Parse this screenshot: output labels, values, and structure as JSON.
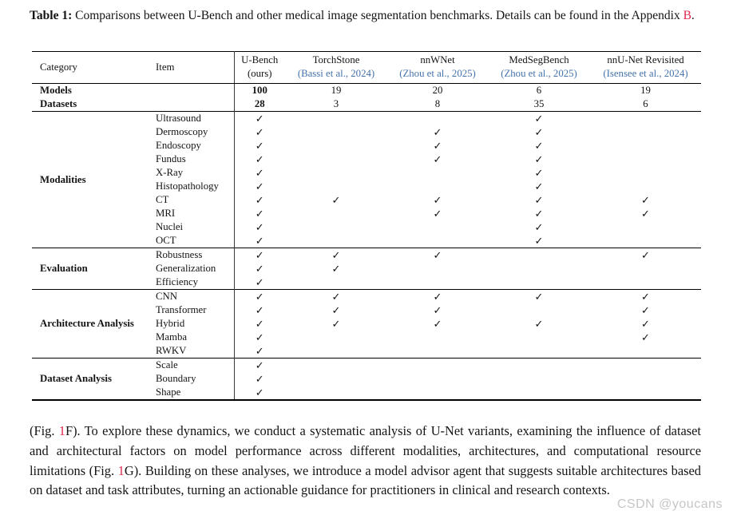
{
  "caption_segments": [
    {
      "t": "Table 1:",
      "b": true,
      "n": "caption-label"
    },
    {
      "t": " Comparisons between U-Bench and other medical image segmentation benchmarks. Details can be found in the Appendix ",
      "n": "caption-text"
    },
    {
      "t": "B",
      "c": "link",
      "n": "appendix-link"
    },
    {
      "t": ".",
      "n": "caption-text"
    }
  ],
  "table": {
    "category_header": "Category",
    "item_header": "Item",
    "checkmark": "✓",
    "methods": [
      {
        "name": "U-Bench",
        "cite": "(ours)",
        "link": false
      },
      {
        "name": "TorchStone",
        "cite": "(Bassi et al., 2024)",
        "link": true
      },
      {
        "name": "nnWNet",
        "cite": "(Zhou et al., 2025)",
        "link": true
      },
      {
        "name": "MedSegBench",
        "cite": "(Zhou et al., 2025)",
        "link": true
      },
      {
        "name": "nnU-Net Revisited",
        "cite": "(Isensee et al., 2024)",
        "link": true
      }
    ],
    "count_rows": [
      {
        "category": "Models",
        "values": [
          "100",
          "19",
          "20",
          "6",
          "19"
        ]
      },
      {
        "category": "Datasets",
        "values": [
          "28",
          "3",
          "8",
          "35",
          "6"
        ]
      }
    ],
    "sections": [
      {
        "category": "Modalities",
        "rows": [
          {
            "item": "Ultrasound",
            "checks": [
              1,
              0,
              0,
              1,
              0
            ]
          },
          {
            "item": "Dermoscopy",
            "checks": [
              1,
              0,
              1,
              1,
              0
            ]
          },
          {
            "item": "Endoscopy",
            "checks": [
              1,
              0,
              1,
              1,
              0
            ]
          },
          {
            "item": "Fundus",
            "checks": [
              1,
              0,
              1,
              1,
              0
            ]
          },
          {
            "item": "X-Ray",
            "checks": [
              1,
              0,
              0,
              1,
              0
            ]
          },
          {
            "item": "Histopathology",
            "checks": [
              1,
              0,
              0,
              1,
              0
            ]
          },
          {
            "item": "CT",
            "checks": [
              1,
              1,
              1,
              1,
              1
            ]
          },
          {
            "item": "MRI",
            "checks": [
              1,
              0,
              1,
              1,
              1
            ]
          },
          {
            "item": "Nuclei",
            "checks": [
              1,
              0,
              0,
              1,
              0
            ]
          },
          {
            "item": "OCT",
            "checks": [
              1,
              0,
              0,
              1,
              0
            ]
          }
        ]
      },
      {
        "category": "Evaluation",
        "rows": [
          {
            "item": "Robustness",
            "checks": [
              1,
              1,
              1,
              0,
              1
            ]
          },
          {
            "item": "Generalization",
            "checks": [
              1,
              1,
              0,
              0,
              0
            ]
          },
          {
            "item": "Efficiency",
            "checks": [
              1,
              0,
              0,
              0,
              0
            ]
          }
        ]
      },
      {
        "category": "Architecture Analysis",
        "rows": [
          {
            "item": "CNN",
            "checks": [
              1,
              1,
              1,
              1,
              1
            ]
          },
          {
            "item": "Transformer",
            "checks": [
              1,
              1,
              1,
              0,
              1
            ]
          },
          {
            "item": "Hybrid",
            "checks": [
              1,
              1,
              1,
              1,
              1
            ]
          },
          {
            "item": "Mamba",
            "checks": [
              1,
              0,
              0,
              0,
              1
            ]
          },
          {
            "item": "RWKV",
            "checks": [
              1,
              0,
              0,
              0,
              0
            ]
          }
        ]
      },
      {
        "category": "Dataset Analysis",
        "rows": [
          {
            "item": "Scale",
            "checks": [
              1,
              0,
              0,
              0,
              0
            ]
          },
          {
            "item": "Boundary",
            "checks": [
              1,
              0,
              0,
              0,
              0
            ]
          },
          {
            "item": "Shape",
            "checks": [
              1,
              0,
              0,
              0,
              0
            ]
          }
        ]
      }
    ]
  },
  "paragraph_segments": [
    {
      "t": "(Fig. ",
      "n": "body-text"
    },
    {
      "t": "1",
      "c": "link",
      "n": "figure-link"
    },
    {
      "t": "F). To explore these dynamics, we conduct a systematic analysis of U-Net variants, examining the influence of dataset and architectural factors on model performance across different modalities, architectures, and computational resource limitations (Fig. ",
      "n": "body-text"
    },
    {
      "t": "1",
      "c": "link",
      "n": "figure-link"
    },
    {
      "t": "G). Building on these analyses, we introduce a model advisor agent that suggests suitable architectures based on dataset and task attributes, turning an actionable guidance for practitioners in clinical and research contexts.",
      "n": "body-text"
    }
  ],
  "watermark": "CSDN @youcans",
  "colors": {
    "link_red": "#e0274e",
    "citation_blue": "#4572aa",
    "watermark_gray": "#c6c6c6"
  }
}
